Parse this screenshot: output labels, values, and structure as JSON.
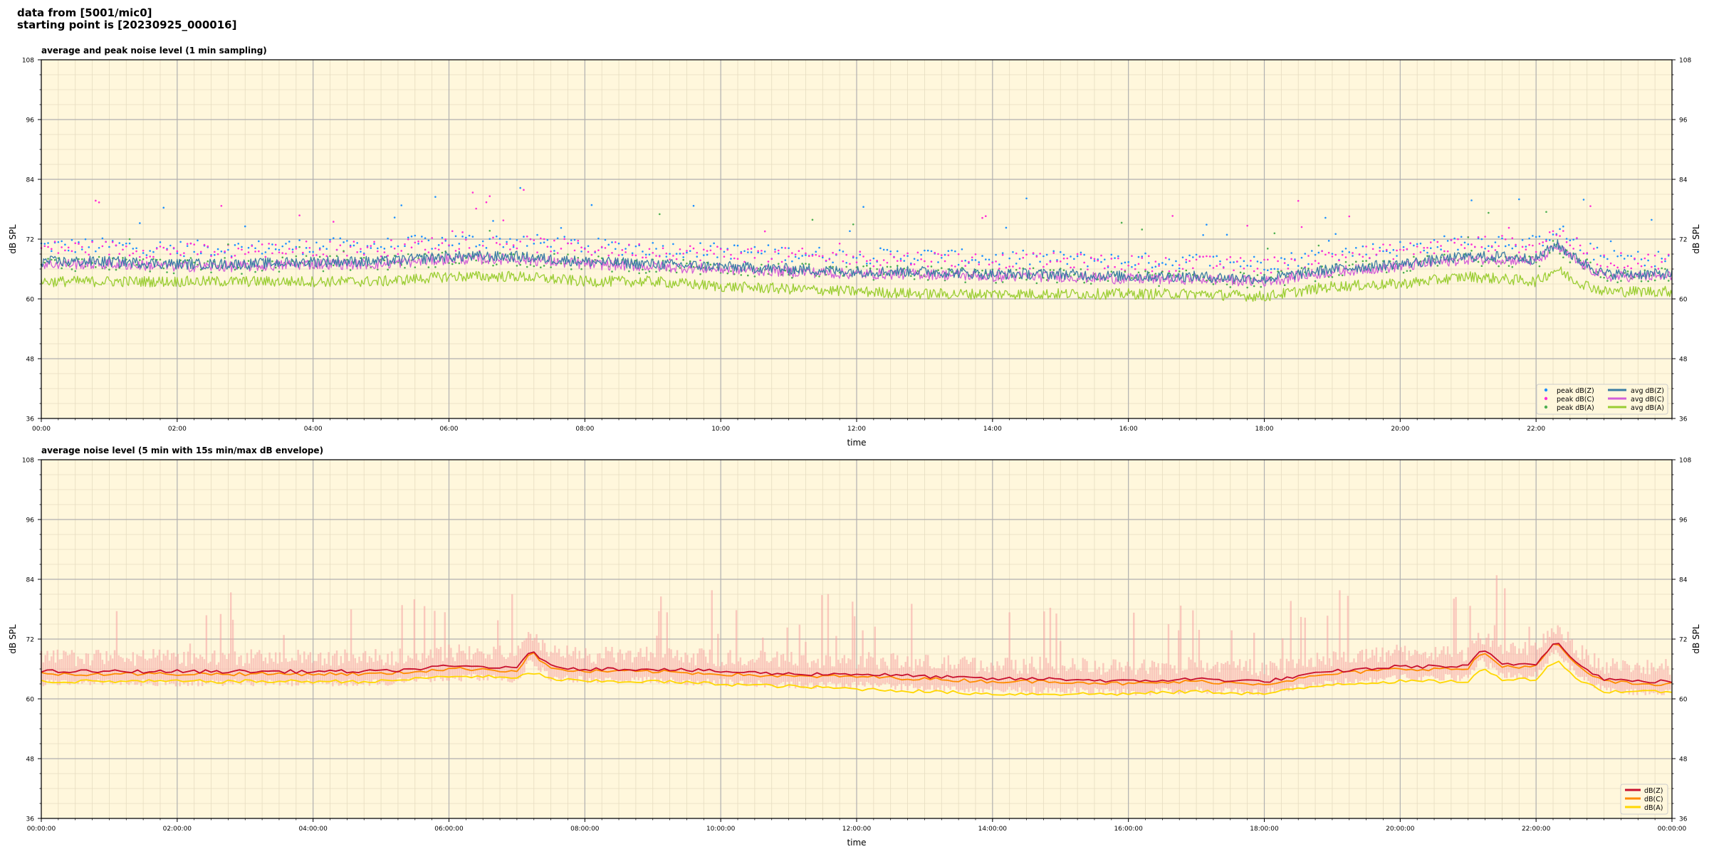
{
  "header": {
    "line1": "data from [5001/mic0]",
    "line2": "starting point is [20230925_000016]"
  },
  "colors": {
    "background": "#FFF7DC",
    "grid_major": "#b0b0b0",
    "grid_minor": "#e6dcc0",
    "peak_z": "#1E90FF",
    "peak_c": "#FF2BD6",
    "peak_a": "#4CAF50",
    "avg_z": "#3A7CA5",
    "avg_c": "#D35FD8",
    "avg_a": "#9ACD32",
    "env": "#F5A3A3",
    "db_z": "#C8102E",
    "db_c": "#FF8C00",
    "db_a": "#FFD700"
  },
  "chart_data": [
    {
      "type": "line",
      "title": "average and peak noise level (1 min sampling)",
      "xlabel": "time",
      "ylabel": "dB SPL",
      "ylim": [
        36,
        108
      ],
      "yticks": [
        "36",
        "48",
        "60",
        "72",
        "84",
        "96",
        "108"
      ],
      "xlim": [
        0,
        24
      ],
      "xticks": [
        "00:00",
        "02:00",
        "04:00",
        "06:00",
        "08:00",
        "10:00",
        "12:00",
        "14:00",
        "16:00",
        "18:00",
        "20:00",
        "22:00"
      ],
      "grid": true,
      "legend_position": "lower-right",
      "legend": [
        "peak dB(Z)",
        "peak dB(C)",
        "peak dB(A)",
        "avg dB(Z)",
        "avg dB(C)",
        "avg dB(A)"
      ],
      "hours": [
        0,
        1,
        2,
        3,
        4,
        5,
        6,
        7,
        8,
        9,
        10,
        11,
        12,
        13,
        14,
        15,
        16,
        17,
        18,
        19,
        20,
        21,
        21.5,
        22,
        22.3,
        22.6,
        23,
        24
      ],
      "series": [
        {
          "name": "avg dB(Z)",
          "values": [
            67.5,
            67.5,
            67,
            67,
            67.5,
            67.5,
            68.5,
            68.5,
            67.5,
            67,
            66.5,
            66,
            65.5,
            65.5,
            65,
            65,
            64.5,
            64.5,
            64,
            66,
            67,
            68.5,
            68.5,
            68,
            71,
            68,
            65,
            65
          ]
        },
        {
          "name": "avg dB(C)",
          "values": [
            67,
            67,
            66.5,
            66.5,
            67,
            67,
            68,
            68,
            67,
            66.5,
            66,
            65.5,
            65,
            65,
            64.5,
            64.5,
            64,
            64,
            63.5,
            65.5,
            66.5,
            68,
            68,
            67.5,
            70.5,
            67.5,
            64.5,
            64.5
          ]
        },
        {
          "name": "avg dB(A)",
          "values": [
            63.5,
            63.5,
            63.5,
            63.5,
            63.5,
            63.5,
            64.5,
            64.5,
            63.5,
            63.5,
            62.5,
            62,
            61.5,
            61,
            61,
            61,
            61,
            61,
            60.5,
            62.5,
            63,
            64.5,
            64,
            63.5,
            66,
            63.5,
            61.5,
            61.5
          ]
        },
        {
          "name": "peak dB(Z)",
          "values": [
            70,
            70,
            69.5,
            69.5,
            70,
            70,
            71,
            71,
            70,
            69.5,
            69,
            68.5,
            68,
            68,
            67.5,
            67.5,
            67,
            67,
            66.5,
            68.5,
            69.5,
            71,
            71,
            70.5,
            73.5,
            70.5,
            67.5,
            67.5
          ]
        },
        {
          "name": "peak dB(C)",
          "values": [
            69.5,
            69.5,
            69,
            69,
            69.5,
            69.5,
            70.5,
            70.5,
            69.5,
            69,
            68.5,
            68,
            67.5,
            67.5,
            67,
            67,
            66.5,
            66.5,
            66,
            68,
            69,
            70.5,
            70.5,
            70,
            73,
            70,
            67,
            67
          ]
        },
        {
          "name": "peak dB(A)",
          "values": [
            66.5,
            66.5,
            66,
            66,
            66.5,
            66.5,
            67.5,
            67.5,
            66.5,
            66,
            65.5,
            65,
            64.5,
            64.5,
            64,
            64,
            63.5,
            63.5,
            63,
            65,
            66,
            67.5,
            67.5,
            67,
            70,
            67,
            64,
            64
          ]
        }
      ]
    },
    {
      "type": "line",
      "title": "average noise level (5 min with 15s min/max dB envelope)",
      "xlabel": "time",
      "ylabel": "dB SPL",
      "ylim": [
        36,
        108
      ],
      "yticks": [
        "36",
        "48",
        "60",
        "72",
        "84",
        "96",
        "108"
      ],
      "xlim": [
        0,
        24
      ],
      "xticks": [
        "00:00:00",
        "02:00:00",
        "04:00:00",
        "06:00:00",
        "08:00:00",
        "10:00:00",
        "12:00:00",
        "14:00:00",
        "16:00:00",
        "18:00:00",
        "20:00:00",
        "22:00:00",
        "00:00:00"
      ],
      "grid": true,
      "legend_position": "lower-right",
      "legend": [
        "dB(Z)",
        "dB(C)",
        "dB(A)"
      ],
      "hours": [
        0,
        1,
        2,
        3,
        4,
        5,
        6,
        6.5,
        7,
        7.2,
        7.5,
        8,
        9,
        10,
        11,
        12,
        13,
        14,
        15,
        16,
        17,
        18,
        19,
        20,
        21,
        21.2,
        21.5,
        22,
        22.3,
        22.6,
        23,
        23.5,
        24
      ],
      "series": [
        {
          "name": "dB(Z)",
          "values": [
            65.5,
            65.5,
            65.5,
            65.5,
            65.5,
            65.5,
            66.5,
            66.5,
            66,
            70,
            66.5,
            66,
            66,
            65.5,
            65,
            65,
            64.5,
            64,
            64,
            63.5,
            64,
            63.5,
            65.5,
            66.5,
            66.5,
            70,
            67,
            67,
            72,
            67,
            64,
            63.5,
            63.5
          ]
        },
        {
          "name": "dB(C)",
          "values": [
            65,
            65,
            65,
            65,
            65,
            65,
            66,
            66,
            65.5,
            69.5,
            66,
            65.5,
            65.5,
            65,
            64.5,
            64.5,
            64,
            63.5,
            63.5,
            63,
            63.5,
            63,
            65,
            66,
            66,
            69.5,
            66.5,
            66.5,
            71.5,
            66.5,
            63.5,
            63,
            63
          ]
        },
        {
          "name": "dB(A)",
          "values": [
            63.5,
            63.5,
            63.5,
            63.5,
            63.5,
            63.5,
            64.5,
            64.5,
            64,
            65.5,
            64,
            63.5,
            63.5,
            63,
            62.5,
            62,
            61.5,
            61,
            61,
            61,
            61.5,
            61,
            63,
            63.5,
            63.5,
            66,
            64,
            64,
            68,
            64,
            61.5,
            61.5,
            61.5
          ]
        }
      ]
    }
  ]
}
